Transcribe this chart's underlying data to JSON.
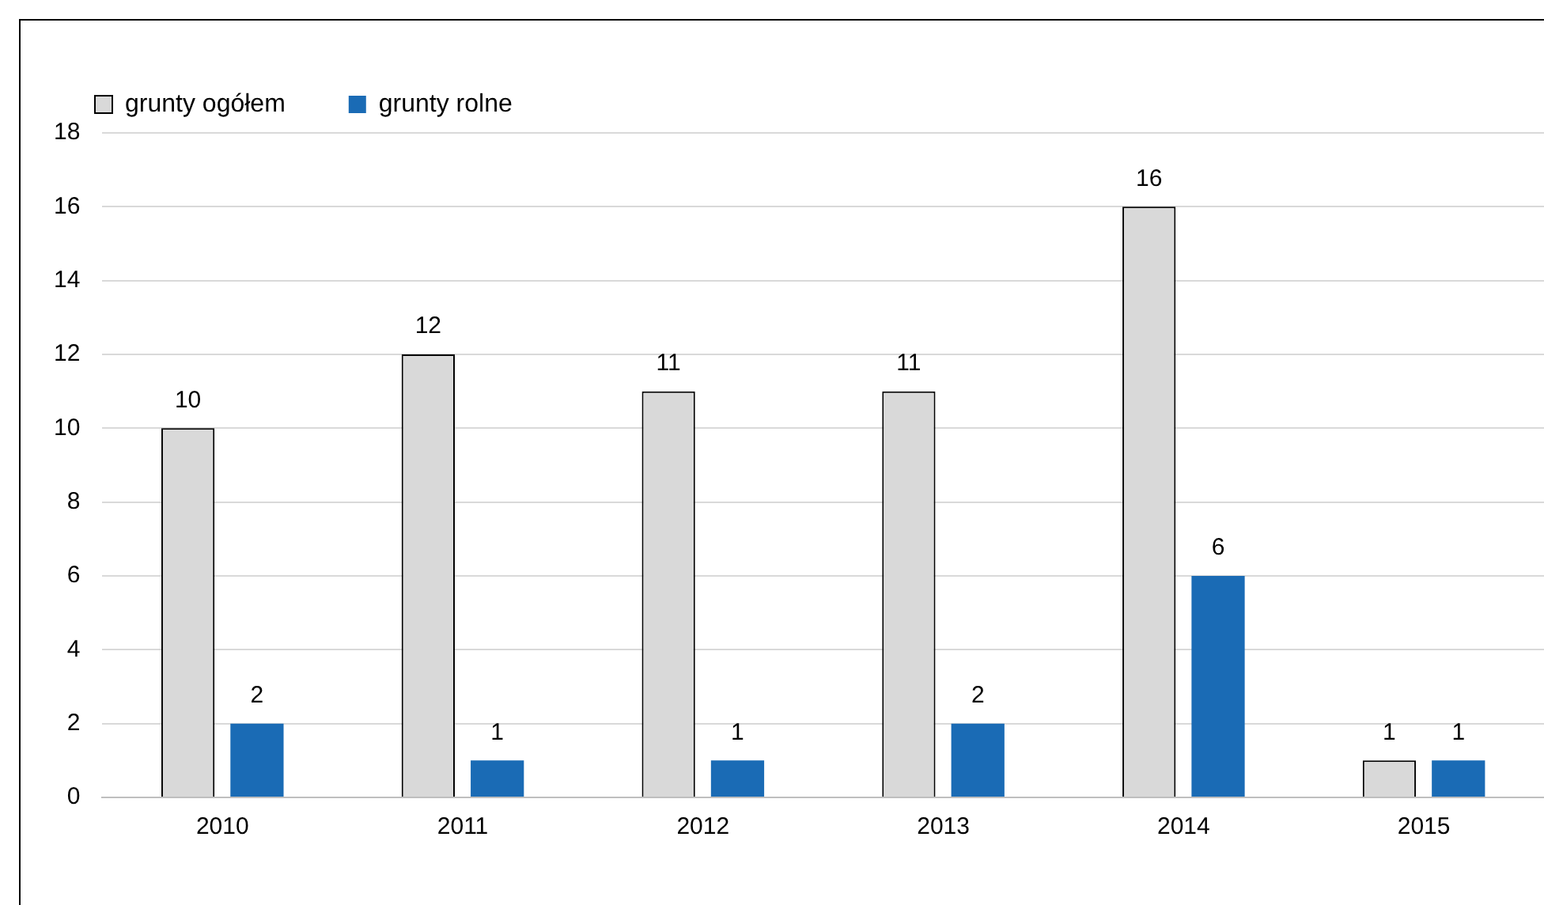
{
  "chart_data": {
    "type": "bar",
    "categories": [
      "2010",
      "2011",
      "2012",
      "2013",
      "2014",
      "2015"
    ],
    "series": [
      {
        "name": "grunty ogółem",
        "color": "#d9d9d9",
        "values": [
          10,
          12,
          11,
          11,
          16,
          1
        ]
      },
      {
        "name": "grunty rolne",
        "color": "#1a6bb5",
        "values": [
          2,
          1,
          1,
          2,
          6,
          1
        ]
      }
    ],
    "ylim": [
      0,
      18
    ],
    "yticks": [
      0,
      2,
      4,
      6,
      8,
      10,
      12,
      14,
      16,
      18
    ],
    "grid": "y",
    "legend": "top left",
    "data_labels": true
  }
}
